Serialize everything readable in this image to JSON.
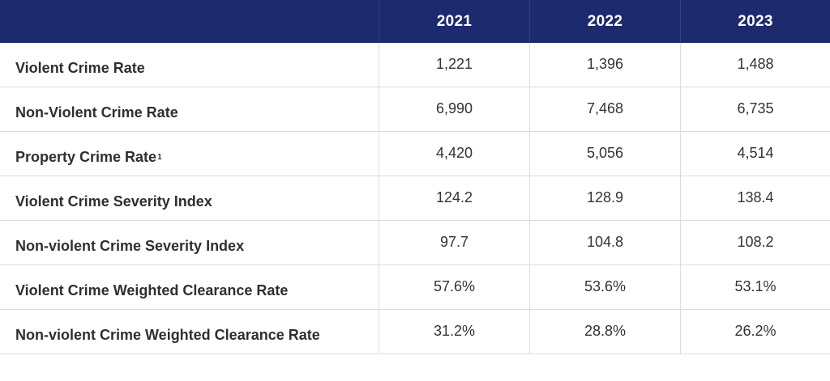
{
  "header": {
    "corner": "",
    "years": [
      "2021",
      "2022",
      "2023"
    ]
  },
  "rows": [
    {
      "label": "Violent Crime Rate",
      "footnote": "",
      "values": [
        "1,221",
        "1,396",
        "1,488"
      ]
    },
    {
      "label": "Non-Violent Crime Rate",
      "footnote": "",
      "values": [
        "6,990",
        "7,468",
        "6,735"
      ]
    },
    {
      "label": "Property Crime Rate",
      "footnote": "1",
      "values": [
        "4,420",
        "5,056",
        "4,514"
      ]
    },
    {
      "label": "Violent Crime Severity Index",
      "footnote": "",
      "values": [
        "124.2",
        "128.9",
        "138.4"
      ]
    },
    {
      "label": "Non-violent Crime Severity Index",
      "footnote": "",
      "values": [
        "97.7",
        "104.8",
        "108.2"
      ]
    },
    {
      "label": "Violent Crime Weighted Clearance Rate",
      "footnote": "",
      "values": [
        "57.6%",
        "53.6%",
        "53.1%"
      ]
    },
    {
      "label": "Non-violent Crime Weighted Clearance Rate",
      "footnote": "",
      "values": [
        "31.2%",
        "28.8%",
        "26.2%"
      ]
    }
  ],
  "colors": {
    "header_bg": "#1d2a6e",
    "header_text": "#ffffff",
    "grid_line": "#dcdcdc"
  }
}
